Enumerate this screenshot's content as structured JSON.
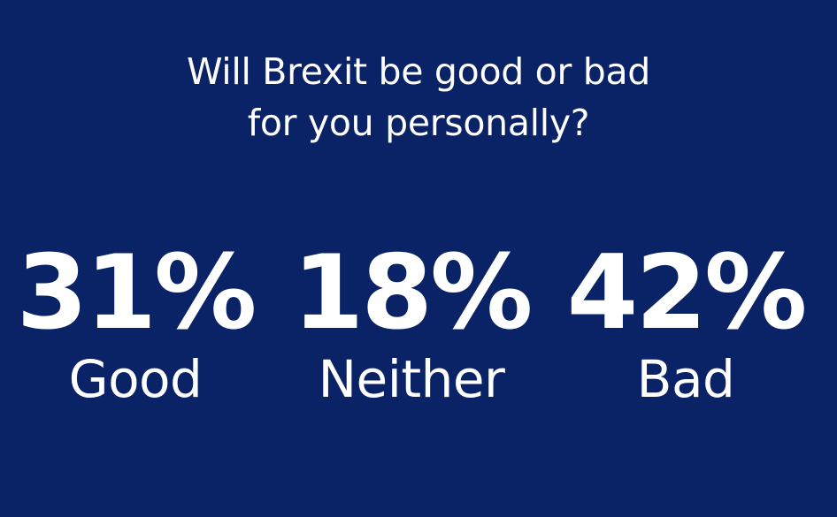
{
  "chart_data": {
    "type": "table",
    "title": "Will Brexit be good or bad for you personally?",
    "title_lines": [
      "Will Brexit be good or bad",
      "for you personally?"
    ],
    "categories": [
      "Good",
      "Neither",
      "Bad"
    ],
    "values": [
      31,
      18,
      42
    ],
    "value_labels": [
      "31%",
      "18%",
      "42%"
    ],
    "unit": "%"
  },
  "colors": {
    "background": "#0a2266",
    "text": "#ffffff"
  }
}
